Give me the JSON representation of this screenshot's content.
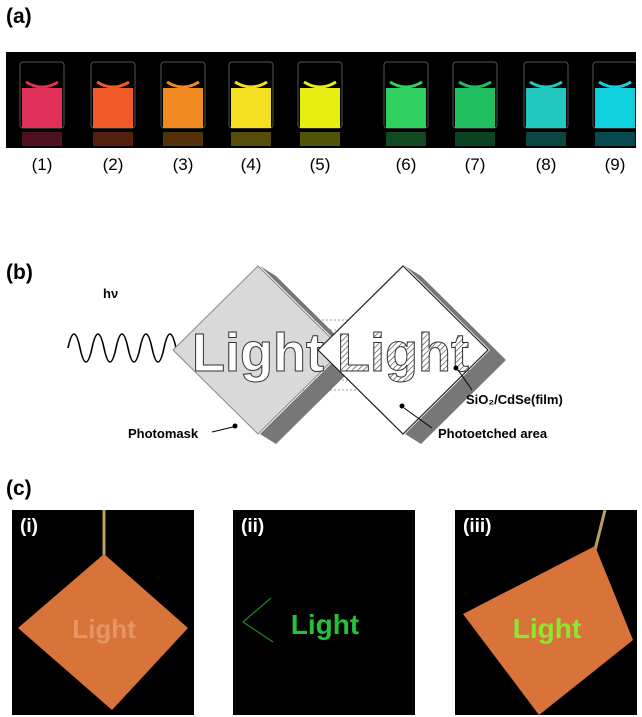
{
  "panels": {
    "a": {
      "label": "(a)",
      "vials": [
        {
          "label": "(1)",
          "color": "#e0305a"
        },
        {
          "label": "(2)",
          "color": "#f05a28"
        },
        {
          "label": "(3)",
          "color": "#f08a20"
        },
        {
          "label": "(4)",
          "color": "#f4e020"
        },
        {
          "label": "(5)",
          "color": "#e8ee10"
        },
        {
          "label": "(6)",
          "color": "#30d060"
        },
        {
          "label": "(7)",
          "color": "#20c060"
        },
        {
          "label": "(8)",
          "color": "#20c8c0"
        },
        {
          "label": "(9)",
          "color": "#10d0e0"
        }
      ]
    },
    "b": {
      "label": "(b)",
      "light_source": "hν",
      "mask_word": "Light",
      "film_word": "Light",
      "callouts": {
        "photomask": "Photomask",
        "film": "SiO₂/CdSe(film)",
        "etched": "Photoetched area"
      }
    },
    "c": {
      "label": "(c)",
      "photos": [
        {
          "label": "(i)",
          "word": "Light"
        },
        {
          "label": "(ii)",
          "word": "Light"
        },
        {
          "label": "(iii)",
          "word": "Light"
        }
      ]
    }
  },
  "colors": {
    "background": "#ffffff",
    "photo_background": "#000000",
    "film_orange": "#d8743a",
    "emission_green": "#22c33a",
    "mask_gray": "#d9d9d9"
  }
}
